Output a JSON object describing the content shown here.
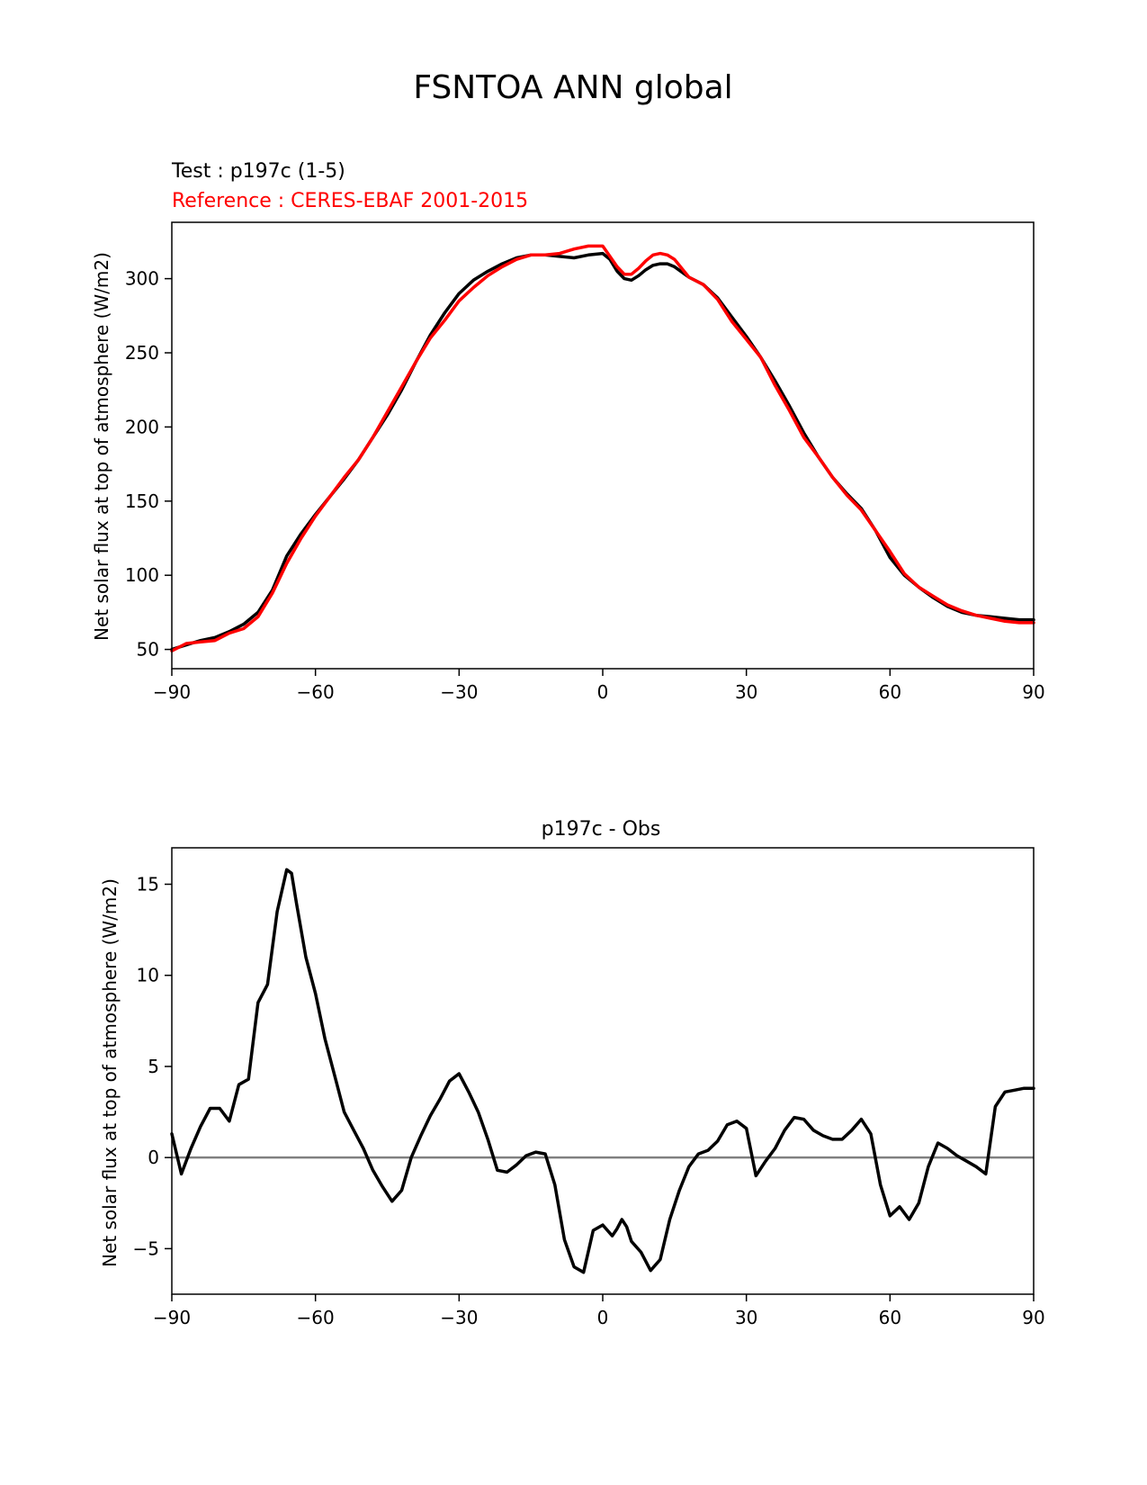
{
  "figure": {
    "title": "FSNTOA ANN global"
  },
  "chart_data": [
    {
      "type": "line",
      "test_label": "Test : p197c (1-5)",
      "reference_label": "Reference : CERES-EBAF 2001-2015",
      "xlabel": "",
      "ylabel": "Net solar flux at top of atmosphere (W/m2)",
      "xlim": [
        -90,
        90
      ],
      "ylim": [
        37,
        338
      ],
      "xticks": [
        -90,
        -60,
        -30,
        0,
        30,
        60,
        90
      ],
      "xtick_labels": [
        "−90",
        "−60",
        "−30",
        "0",
        "30",
        "60",
        "90"
      ],
      "yticks": [
        50,
        100,
        150,
        200,
        250,
        300
      ],
      "ytick_labels": [
        "50",
        "100",
        "150",
        "200",
        "250",
        "300"
      ],
      "grid": false,
      "colors": {
        "test": "#000000",
        "reference": "#ff0000"
      },
      "x": [
        -90,
        -87,
        -84,
        -81,
        -78,
        -75,
        -72,
        -69,
        -66,
        -63,
        -60,
        -57,
        -54,
        -51,
        -48,
        -45,
        -42,
        -39,
        -36,
        -33,
        -30,
        -27,
        -24,
        -21,
        -18,
        -15,
        -12,
        -9,
        -6,
        -3,
        0,
        1.5,
        3,
        4.5,
        6,
        7.5,
        9,
        10.5,
        12,
        13.5,
        15,
        18,
        21,
        24,
        27,
        30,
        33,
        36,
        39,
        42,
        45,
        48,
        51,
        54,
        57,
        60,
        63,
        66,
        69,
        72,
        75,
        78,
        81,
        84,
        87,
        90
      ],
      "series": [
        {
          "role": "test",
          "values": [
            50,
            53,
            56,
            58,
            62,
            67,
            75,
            90,
            113,
            128,
            141,
            153,
            165,
            178,
            193,
            208,
            225,
            244,
            262,
            277,
            290,
            299,
            305,
            310,
            314,
            316,
            316,
            315,
            314,
            316,
            317,
            313,
            305,
            300,
            299,
            302,
            306,
            309,
            310,
            310,
            308,
            301,
            296,
            287,
            274,
            261,
            247,
            231,
            214,
            196,
            180,
            166,
            155,
            145,
            130,
            112,
            100,
            92,
            85,
            79,
            75,
            73,
            72,
            71,
            70,
            70
          ]
        },
        {
          "role": "reference",
          "values": [
            49,
            54,
            55,
            56,
            61,
            64,
            72,
            88,
            108,
            125,
            140,
            153,
            166,
            178,
            193,
            210,
            227,
            244,
            260,
            272,
            285,
            294,
            302,
            308,
            313,
            316,
            316,
            317,
            320,
            322,
            322,
            315,
            308,
            303,
            303,
            307,
            312,
            316,
            317,
            316,
            313,
            301,
            296,
            286,
            271,
            259,
            247,
            228,
            211,
            193,
            180,
            166,
            154,
            144,
            130,
            116,
            101,
            92,
            86,
            80,
            76,
            73,
            71,
            69,
            68,
            68
          ]
        }
      ]
    },
    {
      "type": "line",
      "title": "p197c - Obs",
      "xlabel": "",
      "ylabel": "Net solar flux at top of atmosphere (W/m2)",
      "xlim": [
        -90,
        90
      ],
      "ylim": [
        -7.5,
        17
      ],
      "xticks": [
        -90,
        -60,
        -30,
        0,
        30,
        60,
        90
      ],
      "xtick_labels": [
        "−90",
        "−60",
        "−30",
        "0",
        "30",
        "60",
        "90"
      ],
      "yticks": [
        -5,
        0,
        5,
        10,
        15
      ],
      "ytick_labels": [
        "−5",
        "0",
        "5",
        "10",
        "15"
      ],
      "grid": false,
      "zero_line": true,
      "colors": {
        "difference": "#000000",
        "zero_line": "#808080"
      },
      "x": [
        -90,
        -88,
        -86,
        -84,
        -82,
        -80,
        -78,
        -76,
        -74,
        -72,
        -70,
        -68,
        -66,
        -65,
        -64,
        -62,
        -60,
        -58,
        -56,
        -54,
        -52,
        -50,
        -48,
        -46,
        -44,
        -42,
        -40,
        -38,
        -36,
        -34,
        -32,
        -30,
        -28,
        -26,
        -24,
        -22,
        -20,
        -18,
        -16,
        -14,
        -12,
        -10,
        -8,
        -6,
        -4,
        -2,
        0,
        2,
        3,
        4,
        5,
        6,
        8,
        10,
        12,
        14,
        16,
        18,
        20,
        22,
        24,
        26,
        28,
        30,
        32,
        34,
        36,
        38,
        40,
        42,
        44,
        46,
        48,
        50,
        52,
        54,
        56,
        58,
        60,
        62,
        64,
        66,
        68,
        70,
        72,
        74,
        76,
        78,
        80,
        82,
        84,
        86,
        88,
        90
      ],
      "series": [
        {
          "role": "difference",
          "values": [
            1.3,
            -0.9,
            0.5,
            1.7,
            2.7,
            2.7,
            2.0,
            4.0,
            4.3,
            8.5,
            9.5,
            13.5,
            15.8,
            15.6,
            14.0,
            11.0,
            9.0,
            6.5,
            4.5,
            2.5,
            1.5,
            0.5,
            -0.7,
            -1.6,
            -2.4,
            -1.8,
            0.0,
            1.2,
            2.3,
            3.2,
            4.2,
            4.6,
            3.6,
            2.5,
            1.0,
            -0.7,
            -0.8,
            -0.4,
            0.1,
            0.3,
            0.2,
            -1.5,
            -4.5,
            -6.0,
            -6.3,
            -4.0,
            -3.7,
            -4.3,
            -3.9,
            -3.4,
            -3.8,
            -4.6,
            -5.2,
            -6.2,
            -5.6,
            -3.4,
            -1.8,
            -0.5,
            0.2,
            0.4,
            0.9,
            1.8,
            2.0,
            1.6,
            -1.0,
            -0.2,
            0.5,
            1.5,
            2.2,
            2.1,
            1.5,
            1.2,
            1.0,
            1.0,
            1.5,
            2.1,
            1.3,
            -1.5,
            -3.2,
            -2.7,
            -3.4,
            -2.5,
            -0.5,
            0.8,
            0.5,
            0.1,
            -0.2,
            -0.5,
            -0.9,
            2.8,
            3.6,
            3.7,
            3.8,
            3.8
          ]
        }
      ]
    }
  ]
}
